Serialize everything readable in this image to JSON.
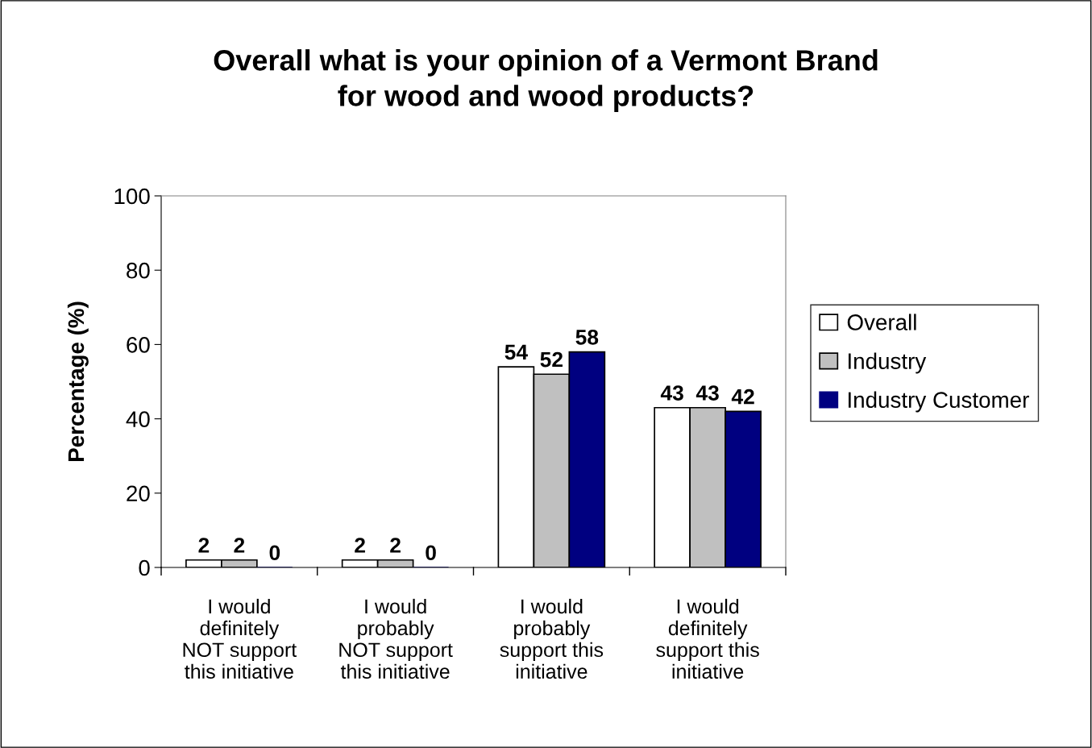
{
  "chart_data": {
    "type": "bar",
    "title": "Overall what is your opinion of a Vermont Brand\nfor wood and wood products?",
    "ylabel": "Percentage (%)",
    "categories": [
      "I would\ndefinitely\nNOT support\nthis initiative",
      "I would\nprobably\nNOT support\nthis initiative",
      "I would\nprobably\nsupport this\ninitiative",
      "I would\ndefinitely\nsupport this\ninitiative"
    ],
    "series": [
      {
        "name": "Overall",
        "color": "#ffffff",
        "values": [
          2,
          2,
          54,
          43
        ]
      },
      {
        "name": "Industry",
        "color": "#c0c0c0",
        "values": [
          2,
          2,
          52,
          43
        ]
      },
      {
        "name": "Industry Customer",
        "color": "#000080",
        "values": [
          0,
          0,
          58,
          42
        ]
      }
    ],
    "ylim": [
      0,
      100
    ],
    "yticks": [
      0,
      20,
      40,
      60,
      80,
      100
    ],
    "data_labels": true,
    "legend": "right",
    "grid": false
  }
}
